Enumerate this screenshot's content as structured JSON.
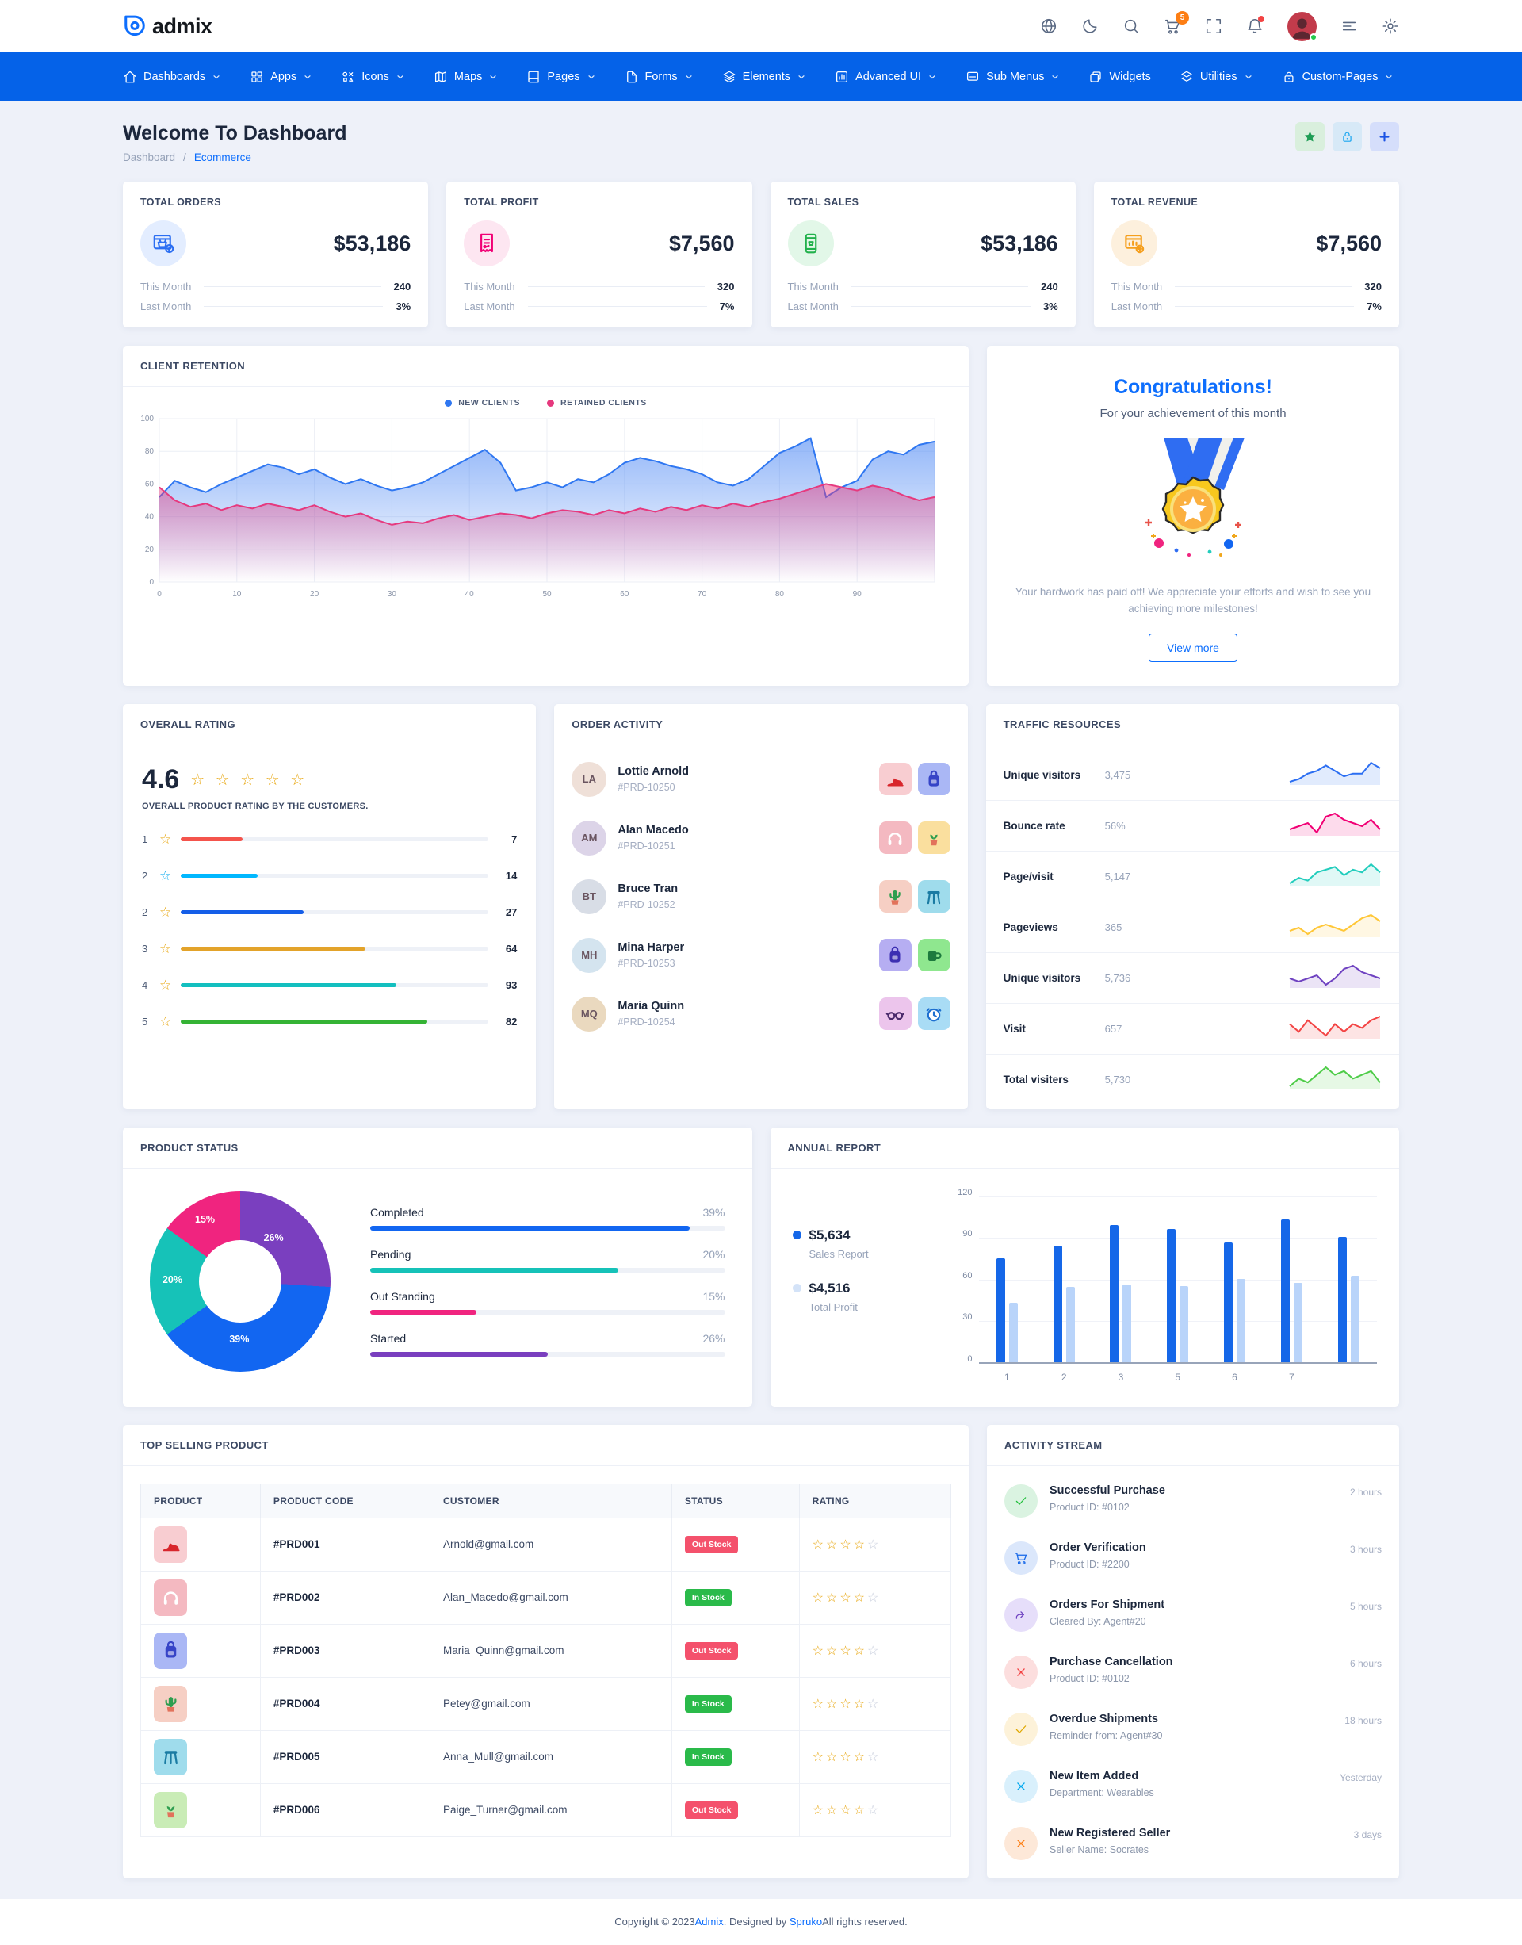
{
  "header": {
    "logo_text": "admix",
    "icons": [
      {
        "name": "globe"
      },
      {
        "name": "moon"
      },
      {
        "name": "search"
      },
      {
        "name": "cart",
        "badge": "5"
      },
      {
        "name": "fullscreen"
      },
      {
        "name": "bell",
        "dot": true
      },
      {
        "name": "avatar",
        "status": "online"
      },
      {
        "name": "menu-lines"
      },
      {
        "name": "gear"
      }
    ]
  },
  "navbar": {
    "items": [
      {
        "label": "Dashboards",
        "icon": "home",
        "chevron": true
      },
      {
        "label": "Apps",
        "icon": "grid",
        "chevron": true
      },
      {
        "label": "Icons",
        "icon": "shapes",
        "chevron": true
      },
      {
        "label": "Maps",
        "icon": "map",
        "chevron": true
      },
      {
        "label": "Pages",
        "icon": "book",
        "chevron": true
      },
      {
        "label": "Forms",
        "icon": "file",
        "chevron": true
      },
      {
        "label": "Elements",
        "icon": "layers",
        "chevron": true
      },
      {
        "label": "Advanced UI",
        "icon": "chartbox",
        "chevron": true
      },
      {
        "label": "Sub Menus",
        "icon": "board",
        "chevron": true
      },
      {
        "label": "Widgets",
        "icon": "widgets",
        "chevron": false
      },
      {
        "label": "Utilities",
        "icon": "utilities",
        "chevron": true
      },
      {
        "label": "Custom-Pages",
        "icon": "lock",
        "chevron": true
      }
    ]
  },
  "page_header": {
    "title": "Welcome To Dashboard",
    "breadcrumb": [
      "Dashboard",
      "Ecommerce"
    ],
    "actions": [
      {
        "icon": "star",
        "bg": "#d9efdd",
        "color": "#1f9d55"
      },
      {
        "icon": "lock",
        "bg": "#d7e9f7",
        "color": "#18a5f0"
      },
      {
        "icon": "plus",
        "bg": "#d5defb",
        "color": "#1b53e4"
      }
    ]
  },
  "stats": [
    {
      "title": "TOTAL ORDERS",
      "icon": "orders",
      "color": "#2b6ef2",
      "tint": "#e3edff",
      "value": "$53,186",
      "rows": [
        [
          "This Month",
          "240"
        ],
        [
          "Last Month",
          "3%"
        ]
      ]
    },
    {
      "title": "TOTAL PROFIT",
      "icon": "receipt",
      "color": "#f10075",
      "tint": "#fde6f1",
      "value": "$7,560",
      "rows": [
        [
          "This Month",
          "320"
        ],
        [
          "Last Month",
          "7%"
        ]
      ]
    },
    {
      "title": "TOTAL SALES",
      "icon": "sales",
      "color": "#22b14c",
      "tint": "#e2f7e8",
      "value": "$53,186",
      "rows": [
        [
          "This Month",
          "240"
        ],
        [
          "Last Month",
          "3%"
        ]
      ]
    },
    {
      "title": "TOTAL REVENUE",
      "icon": "revenue",
      "color": "#f59f1d",
      "tint": "#fdf0dd",
      "value": "$7,560",
      "rows": [
        [
          "This Month",
          "320"
        ],
        [
          "Last Month",
          "7%"
        ]
      ]
    }
  ],
  "client_retention": {
    "title": "CLIENT RETENTION",
    "chart_data": {
      "type": "area",
      "xlabel": "",
      "ylabel": "",
      "x_ticks": [
        0,
        10,
        20,
        30,
        40,
        50,
        60,
        70,
        80,
        90
      ],
      "y_ticks": [
        0,
        20,
        40,
        60,
        80,
        100
      ],
      "ymax": 100,
      "series": [
        {
          "name": "NEW CLIENTS",
          "color": "#2f77f1",
          "values": [
            52,
            62,
            58,
            55,
            60,
            64,
            68,
            72,
            70,
            66,
            69,
            64,
            60,
            63,
            59,
            56,
            58,
            61,
            66,
            71,
            76,
            81,
            73,
            56,
            58,
            61,
            58,
            63,
            61,
            66,
            73,
            76,
            74,
            71,
            69,
            66,
            61,
            59,
            63,
            71,
            79,
            83,
            88,
            52,
            58,
            62,
            75,
            80,
            78,
            84,
            86
          ]
        },
        {
          "name": "RETAINED CLIENTS",
          "color": "#e6397e",
          "values": [
            58,
            50,
            46,
            48,
            44,
            47,
            45,
            48,
            46,
            44,
            47,
            43,
            40,
            42,
            38,
            35,
            37,
            36,
            39,
            41,
            38,
            40,
            42,
            41,
            39,
            42,
            44,
            43,
            41,
            44,
            42,
            45,
            43,
            46,
            44,
            47,
            45,
            48,
            46,
            49,
            51,
            54,
            57,
            60,
            58,
            56,
            59,
            57,
            53,
            50,
            52
          ]
        }
      ],
      "legend_position": "top"
    }
  },
  "congratulations": {
    "title": "Congratulations!",
    "subtitle": "For your achievement of this month",
    "description": "Your hardwork has paid off! We appreciate your efforts and wish to see you achieving more milestones!",
    "button": "View more",
    "illustration": "medal-icon"
  },
  "overall_rating": {
    "title": "OVERALL RATING",
    "score": "4.6",
    "stars": "☆ ☆ ☆ ☆ ☆",
    "caption": "OVERALL PRODUCT RATING BY THE CUSTOMERS.",
    "rows": [
      {
        "star_label": "1",
        "star_color": "#e8a710",
        "bar_color": "#f4544c",
        "value": 7,
        "fill_pct": 20
      },
      {
        "star_label": "2",
        "star_color": "#01a8ef",
        "bar_color": "#01b8ff",
        "value": 14,
        "fill_pct": 25
      },
      {
        "star_label": "2",
        "star_color": "#e8a710",
        "bar_color": "#155ee8",
        "value": 27,
        "fill_pct": 40
      },
      {
        "star_label": "3",
        "star_color": "#e8a710",
        "bar_color": "#e3a32a",
        "value": 64,
        "fill_pct": 60
      },
      {
        "star_label": "4",
        "star_color": "#e8a710",
        "bar_color": "#13bfbf",
        "value": 93,
        "fill_pct": 70
      },
      {
        "star_label": "5",
        "star_color": "#e8a710",
        "bar_color": "#35b335",
        "value": 82,
        "fill_pct": 80
      }
    ]
  },
  "order_activity": {
    "title": "ORDER ACTIVITY",
    "items": [
      {
        "name": "Lottie Arnold",
        "id": "#PRD-10250",
        "initials": "LA",
        "avatar_bg": "#efe0d8",
        "products": [
          {
            "icon": "shoe",
            "bg": "#f8cdd1",
            "color": "#d8262c"
          },
          {
            "icon": "backpack",
            "bg": "#aab7f5",
            "color": "#3644c7"
          }
        ]
      },
      {
        "name": "Alan Macedo",
        "id": "#PRD-10251",
        "initials": "AM",
        "avatar_bg": "#dcd4e8",
        "products": [
          {
            "icon": "headphones",
            "bg": "#f4b9c1",
            "color": "#ffffff"
          },
          {
            "icon": "plant",
            "bg": "#fadf9e",
            "color": "#2e9e4f"
          }
        ]
      },
      {
        "name": "Bruce Tran",
        "id": "#PRD-10252",
        "initials": "BT",
        "avatar_bg": "#d8dde6",
        "products": [
          {
            "icon": "cactus",
            "bg": "#f6cfc4",
            "color": "#2e9e4f"
          },
          {
            "icon": "stool",
            "bg": "#9fdcec",
            "color": "#1a7ba3"
          }
        ]
      },
      {
        "name": "Mina Harper",
        "id": "#PRD-10253",
        "initials": "MH",
        "avatar_bg": "#d4e4ef",
        "products": [
          {
            "icon": "backpack",
            "bg": "#b6aef2",
            "color": "#3c2fb2"
          },
          {
            "icon": "mug",
            "bg": "#8fe78f",
            "color": "#1d7a3e"
          }
        ]
      },
      {
        "name": "Maria Quinn",
        "id": "#PRD-10254",
        "initials": "MQ",
        "avatar_bg": "#ead9bf",
        "products": [
          {
            "icon": "glasses",
            "bg": "#ecc5ec",
            "color": "#4a2a6b"
          },
          {
            "icon": "clock",
            "bg": "#a9dcf5",
            "color": "#1d6fd0"
          }
        ]
      }
    ]
  },
  "traffic_resources": {
    "title": "TRAFFIC RESOURCES",
    "rows": [
      {
        "label": "Unique visitors",
        "value": "3,475",
        "color": "#2b6ef2",
        "spark": [
          2,
          3,
          5,
          6,
          8,
          6,
          4,
          5,
          5,
          9,
          7
        ]
      },
      {
        "label": "Bounce rate",
        "value": "56%",
        "color": "#f10075",
        "spark": [
          4,
          5,
          6,
          3,
          8,
          9,
          7,
          6,
          5,
          7,
          4
        ]
      },
      {
        "label": "Page/visit",
        "value": "5,147",
        "color": "#23cdbd",
        "spark": [
          2,
          4,
          3,
          6,
          7,
          8,
          5,
          7,
          6,
          9,
          6
        ]
      },
      {
        "label": "Pageviews",
        "value": "365",
        "color": "#ffc737",
        "spark": [
          4,
          5,
          3,
          5,
          6,
          5,
          4,
          6,
          8,
          9,
          7
        ]
      },
      {
        "label": "Unique visitors",
        "value": "5,736",
        "color": "#6f42c1",
        "spark": [
          5,
          4,
          5,
          6,
          3,
          5,
          8,
          9,
          7,
          6,
          5
        ]
      },
      {
        "label": "Visit",
        "value": "657",
        "color": "#f34343",
        "spark": [
          6,
          4,
          7,
          5,
          3,
          6,
          4,
          6,
          5,
          7,
          8
        ]
      },
      {
        "label": "Total visiters",
        "value": "5,730",
        "color": "#4ecc48",
        "spark": [
          3,
          5,
          4,
          6,
          8,
          6,
          7,
          5,
          6,
          7,
          4
        ]
      }
    ]
  },
  "product_status": {
    "title": "PRODUCT STATUS",
    "chart_data": {
      "type": "pie",
      "donut": true,
      "slices_clockwise_from_top": [
        {
          "label": "Started",
          "value": 26,
          "color": "#7a3fbf"
        },
        {
          "label": "Completed",
          "value": 39,
          "color": "#1266f1"
        },
        {
          "label": "Pending",
          "value": 20,
          "color": "#16c2b8"
        },
        {
          "label": "Out Standing",
          "value": 15,
          "color": "#f0247f"
        }
      ]
    },
    "legend": [
      {
        "label": "Completed",
        "pct": "39%",
        "color": "#1266f1",
        "fill": 90
      },
      {
        "label": "Pending",
        "pct": "20%",
        "color": "#16c2b8",
        "fill": 70
      },
      {
        "label": "Out Standing",
        "pct": "15%",
        "color": "#f0247f",
        "fill": 30
      },
      {
        "label": "Started",
        "pct": "26%",
        "color": "#7a3fbf",
        "fill": 50
      }
    ]
  },
  "annual_report": {
    "title": "ANNUAL REPORT",
    "legend": [
      {
        "value": "$5,634",
        "label": "Sales Report",
        "color": "#1567e8"
      },
      {
        "value": "$4,516",
        "label": "Total Profit",
        "color": "#d4e3f8"
      }
    ],
    "chart_data": {
      "type": "bar",
      "categories": [
        "1",
        "2",
        "3",
        "5",
        "6",
        "7",
        ""
      ],
      "series": [
        {
          "name": "Sales Report",
          "color": "#1567e8",
          "values": [
            75,
            84,
            99,
            96,
            86,
            103,
            90
          ]
        },
        {
          "name": "Total Profit",
          "color": "#b9d4fa",
          "values": [
            43,
            54,
            56,
            55,
            60,
            57,
            62
          ]
        }
      ],
      "ylim": [
        0,
        120
      ],
      "y_ticks": [
        0,
        30,
        60,
        90,
        120
      ]
    }
  },
  "top_selling": {
    "title": "TOP SELLING PRODUCT",
    "columns": [
      "PRODUCT",
      "PRODUCT CODE",
      "CUSTOMER",
      "STATUS",
      "RATING"
    ],
    "rows": [
      {
        "icon": "shoe",
        "tile_bg": "#f8cdd1",
        "icon_color": "#d8262c",
        "code": "#PRD001",
        "customer": "Arnold@gmail.com",
        "status": "Out Stock",
        "status_color": "#f4516c",
        "stars_on": 4
      },
      {
        "icon": "headphones",
        "tile_bg": "#f4b9c1",
        "icon_color": "#ffffff",
        "code": "#PRD002",
        "customer": "Alan_Macedo@gmail.com",
        "status": "In Stock",
        "status_color": "#2aba4a",
        "stars_on": 4
      },
      {
        "icon": "backpack",
        "tile_bg": "#aab7f5",
        "icon_color": "#3644c7",
        "code": "#PRD003",
        "customer": "Maria_Quinn@gmail.com",
        "status": "Out Stock",
        "status_color": "#f4516c",
        "stars_on": 4
      },
      {
        "icon": "cactus",
        "tile_bg": "#f6cfc4",
        "icon_color": "#2e9e4f",
        "code": "#PRD004",
        "customer": "Petey@gmail.com",
        "status": "In Stock",
        "status_color": "#2aba4a",
        "stars_on": 4
      },
      {
        "icon": "stool",
        "tile_bg": "#9fdcec",
        "icon_color": "#1a7ba3",
        "code": "#PRD005",
        "customer": "Anna_Mull@gmail.com",
        "status": "In Stock",
        "status_color": "#2aba4a",
        "stars_on": 4
      },
      {
        "icon": "plant",
        "tile_bg": "#c9ecb6",
        "icon_color": "#2e9e4f",
        "code": "#PRD006",
        "customer": "Paige_Turner@gmail.com",
        "status": "Out Stock",
        "status_color": "#f4516c",
        "stars_on": 4
      }
    ]
  },
  "activity_stream": {
    "title": "ACTIVITY STREAM",
    "items": [
      {
        "icon": "check",
        "bg": "#daf3e1",
        "color": "#22c03c",
        "title": "Successful Purchase",
        "sub": "Product ID: #0102",
        "time": "2 hours"
      },
      {
        "icon": "cart",
        "bg": "#dbe7fb",
        "color": "#1567e8",
        "title": "Order Verification",
        "sub": "Product ID: #2200",
        "time": "3 hours"
      },
      {
        "icon": "forward",
        "bg": "#e6defa",
        "color": "#6f42c1",
        "title": "Orders For Shipment",
        "sub": "Cleared By: Agent#20",
        "time": "5 hours"
      },
      {
        "icon": "xmark",
        "bg": "#fcdede",
        "color": "#f34343",
        "title": "Purchase Cancellation",
        "sub": "Product ID: #0102",
        "time": "6 hours"
      },
      {
        "icon": "check",
        "bg": "#fdf2d9",
        "color": "#e0a800",
        "title": "Overdue Shipments",
        "sub": "Reminder from: Agent#30",
        "time": "18 hours"
      },
      {
        "icon": "xmark",
        "bg": "#d9f0fc",
        "color": "#01a8ef",
        "title": "New Item Added",
        "sub": "Department: Wearables",
        "time": "Yesterday"
      },
      {
        "icon": "xmark",
        "bg": "#fde8d8",
        "color": "#fd7e14",
        "title": "New Registered Seller",
        "sub": "Seller Name: Socrates",
        "time": "3 days"
      }
    ]
  },
  "footer": {
    "prefix": "Copyright © 2023 ",
    "brand": "Admix",
    "middle": ". Designed by ",
    "designer": "Spruko",
    "suffix": " All rights reserved."
  }
}
